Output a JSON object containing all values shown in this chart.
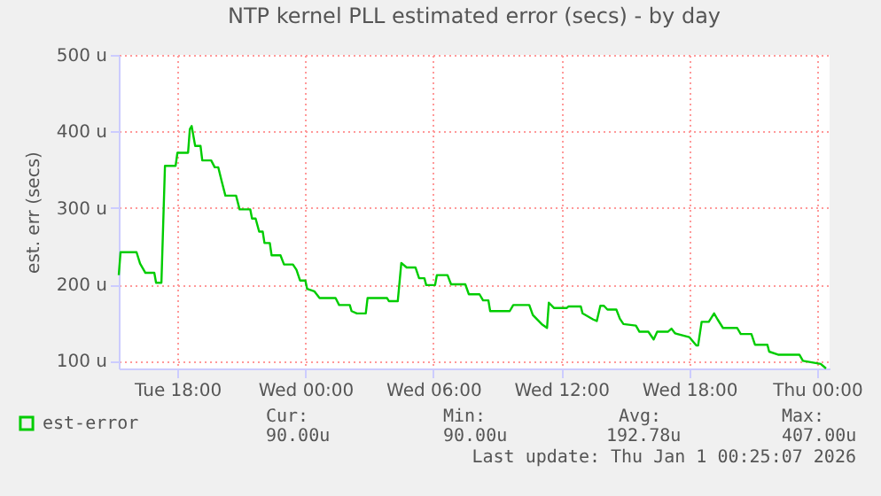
{
  "chart_data": {
    "type": "line",
    "title": "NTP kernel PLL estimated error (secs) - by day",
    "ylabel": "est. err (secs)",
    "x": [
      "2025-12-30T15:15",
      "2025-12-30T15:20",
      "2025-12-30T16:05",
      "2025-12-30T16:15",
      "2025-12-30T16:30",
      "2025-12-30T16:55",
      "2025-12-30T17:00",
      "2025-12-30T17:15",
      "2025-12-30T17:25",
      "2025-12-30T17:55",
      "2025-12-30T18:00",
      "2025-12-30T18:30",
      "2025-12-30T18:35",
      "2025-12-30T18:40",
      "2025-12-30T18:50",
      "2025-12-30T19:05",
      "2025-12-30T19:10",
      "2025-12-30T19:35",
      "2025-12-30T19:45",
      "2025-12-30T19:55",
      "2025-12-30T20:05",
      "2025-12-30T20:15",
      "2025-12-30T20:45",
      "2025-12-30T20:55",
      "2025-12-30T21:25",
      "2025-12-30T21:30",
      "2025-12-30T21:40",
      "2025-12-30T21:50",
      "2025-12-30T22:00",
      "2025-12-30T22:05",
      "2025-12-30T22:20",
      "2025-12-30T22:25",
      "2025-12-30T22:50",
      "2025-12-30T23:00",
      "2025-12-30T23:25",
      "2025-12-30T23:35",
      "2025-12-30T23:45",
      "2025-12-31T00:00",
      "2025-12-31T00:05",
      "2025-12-31T00:25",
      "2025-12-31T00:40",
      "2025-12-31T01:25",
      "2025-12-31T01:35",
      "2025-12-31T02:05",
      "2025-12-31T02:10",
      "2025-12-31T02:25",
      "2025-12-31T02:50",
      "2025-12-31T02:55",
      "2025-12-31T03:50",
      "2025-12-31T03:55",
      "2025-12-31T04:20",
      "2025-12-31T04:30",
      "2025-12-31T04:45",
      "2025-12-31T05:10",
      "2025-12-31T05:20",
      "2025-12-31T05:35",
      "2025-12-31T05:40",
      "2025-12-31T06:05",
      "2025-12-31T06:10",
      "2025-12-31T06:40",
      "2025-12-31T06:50",
      "2025-12-31T07:30",
      "2025-12-31T07:40",
      "2025-12-31T08:10",
      "2025-12-31T08:20",
      "2025-12-31T08:35",
      "2025-12-31T08:40",
      "2025-12-31T09:35",
      "2025-12-31T09:45",
      "2025-12-31T10:30",
      "2025-12-31T10:40",
      "2025-12-31T11:05",
      "2025-12-31T11:20",
      "2025-12-31T11:25",
      "2025-12-31T11:40",
      "2025-12-31T12:15",
      "2025-12-31T12:20",
      "2025-12-31T12:55",
      "2025-12-31T13:00",
      "2025-12-31T13:30",
      "2025-12-31T13:40",
      "2025-12-31T13:50",
      "2025-12-31T14:00",
      "2025-12-31T14:10",
      "2025-12-31T14:35",
      "2025-12-31T14:45",
      "2025-12-31T14:55",
      "2025-12-31T15:30",
      "2025-12-31T15:40",
      "2025-12-31T16:05",
      "2025-12-31T16:20",
      "2025-12-31T16:30",
      "2025-12-31T17:00",
      "2025-12-31T17:10",
      "2025-12-31T17:20",
      "2025-12-31T18:00",
      "2025-12-31T18:20",
      "2025-12-31T18:25",
      "2025-12-31T18:35",
      "2025-12-31T18:55",
      "2025-12-31T19:10",
      "2025-12-31T19:20",
      "2025-12-31T19:35",
      "2025-12-31T20:15",
      "2025-12-31T20:25",
      "2025-12-31T20:55",
      "2025-12-31T21:05",
      "2025-12-31T21:40",
      "2025-12-31T21:45",
      "2025-12-31T22:10",
      "2025-12-31T23:10",
      "2025-12-31T23:20",
      "2026-01-01T00:10",
      "2026-01-01T00:25"
    ],
    "series": [
      {
        "name": "est-error",
        "color": "#00cc00",
        "values": [
          212,
          242,
          242,
          227,
          215,
          215,
          202,
          202,
          355,
          355,
          372,
          372,
          403,
          407,
          381,
          381,
          362,
          362,
          353,
          353,
          334,
          316,
          316,
          298,
          298,
          286,
          286,
          269,
          269,
          254,
          254,
          238,
          238,
          226,
          226,
          219,
          205,
          205,
          194,
          191,
          182,
          182,
          173,
          173,
          165,
          162,
          162,
          182,
          182,
          178,
          178,
          228,
          222,
          222,
          208,
          208,
          199,
          199,
          212,
          212,
          200,
          200,
          187,
          187,
          179,
          179,
          165,
          165,
          173,
          173,
          160,
          148,
          143,
          176,
          169,
          169,
          171,
          171,
          162,
          154,
          152,
          172,
          172,
          167,
          167,
          155,
          148,
          146,
          138,
          138,
          128,
          138,
          138,
          142,
          136,
          131,
          120,
          120,
          151,
          151,
          162,
          154,
          143,
          143,
          135,
          135,
          121,
          121,
          112,
          108,
          108,
          100,
          96,
          90
        ]
      }
    ],
    "xlim": [
      "2025-12-30T15:15",
      "2026-01-01T00:35"
    ],
    "xticks": [
      {
        "value": "2025-12-30T18:00",
        "label": "Tue 18:00"
      },
      {
        "value": "2025-12-31T00:00",
        "label": "Wed 00:00"
      },
      {
        "value": "2025-12-31T06:00",
        "label": "Wed 06:00"
      },
      {
        "value": "2025-12-31T12:00",
        "label": "Wed 12:00"
      },
      {
        "value": "2025-12-31T18:00",
        "label": "Wed 18:00"
      },
      {
        "value": "2026-01-01T00:00",
        "label": "Thu 00:00"
      }
    ],
    "ylim": [
      90,
      500
    ],
    "yticks": [
      {
        "value": 100,
        "label": "100 u"
      },
      {
        "value": 200,
        "label": "200 u"
      },
      {
        "value": 300,
        "label": "300 u"
      },
      {
        "value": 400,
        "label": "400 u"
      },
      {
        "value": 500,
        "label": "500 u"
      }
    ],
    "grid": true,
    "legend": "bottom left",
    "line_style": "solid",
    "annotations": [
      "Cur:",
      "Min:",
      "Avg:",
      "Max:",
      "90.00u",
      "90.00u",
      "192.78u",
      "407.00u",
      "Last update: Thu Jan  1 00:25:07 2026"
    ]
  }
}
